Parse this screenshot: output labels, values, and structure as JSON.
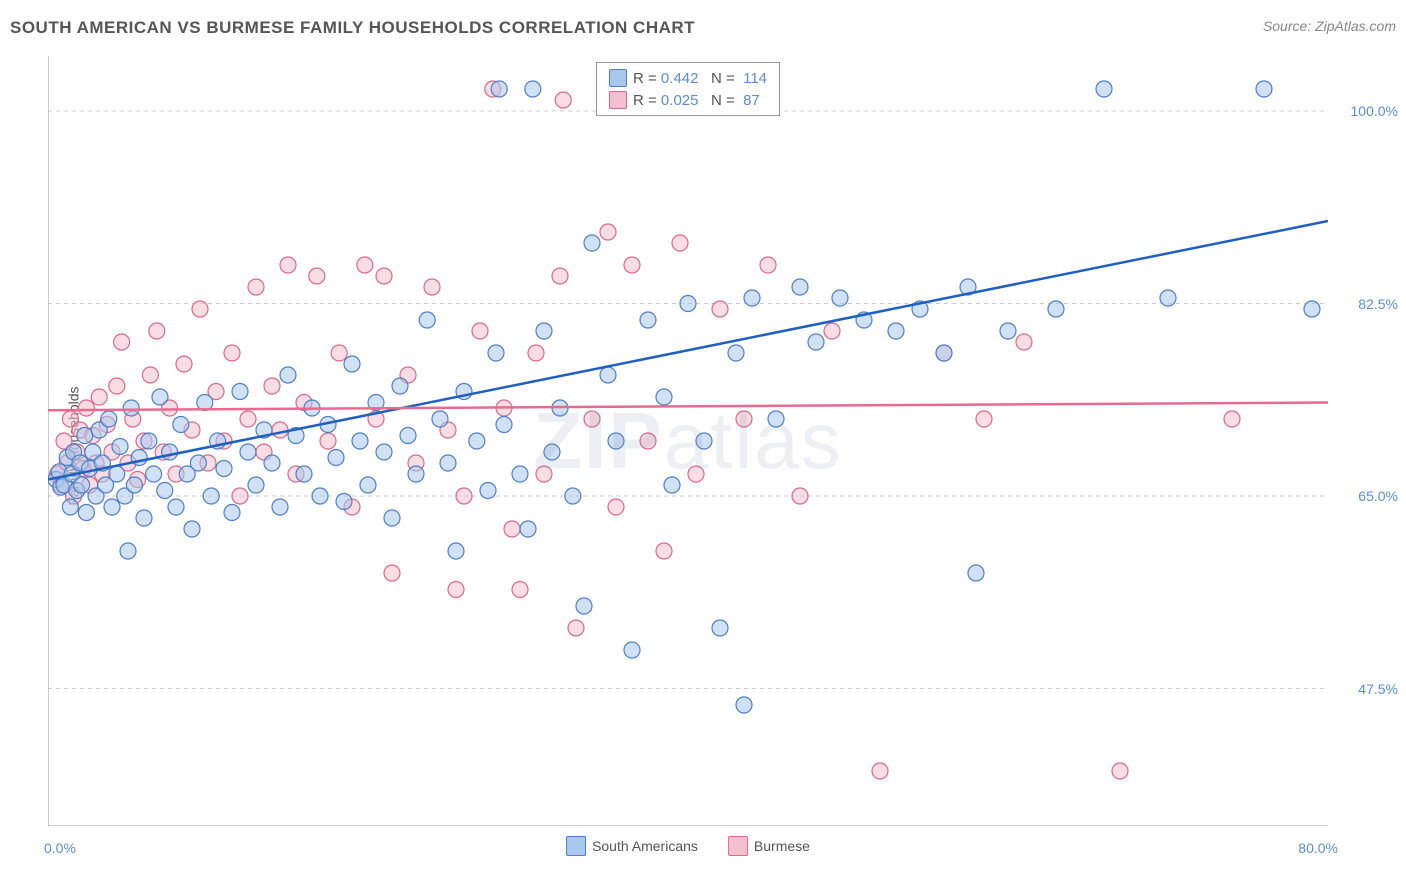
{
  "header": {
    "title": "SOUTH AMERICAN VS BURMESE FAMILY HOUSEHOLDS CORRELATION CHART",
    "source": "Source: ZipAtlas.com"
  },
  "watermark": {
    "bold": "ZIP",
    "light": "atlas"
  },
  "chart": {
    "type": "scatter",
    "ylabel": "Family Households",
    "background_color": "#ffffff",
    "grid_color": "#cccccc",
    "axis_color": "#999999",
    "tick_color": "#999999",
    "xlim": [
      0,
      80
    ],
    "ylim": [
      35,
      105
    ],
    "xtick_step": 10,
    "ytick_step": 17.5,
    "ytick_labels": [
      "47.5%",
      "65.0%",
      "82.5%",
      "100.0%"
    ],
    "ytick_values": [
      47.5,
      65.0,
      82.5,
      100.0
    ],
    "xtick_labels_shown": {
      "first": "0.0%",
      "last": "80.0%"
    },
    "marker_radius": 8,
    "marker_opacity": 0.55,
    "marker_stroke_width": 1.2,
    "trend_line_width": 2.5,
    "series": [
      {
        "key": "south_americans",
        "label": "South Americans",
        "fill": "#a9c6ec",
        "stroke": "#4f7fc4",
        "line_color": "#1f5fc0",
        "R": "0.442",
        "N": "114",
        "trend": {
          "x1": 0,
          "y1": 66.5,
          "x2": 80,
          "y2": 90.0
        },
        "points": [
          [
            0.5,
            66.5
          ],
          [
            0.7,
            67.2
          ],
          [
            0.8,
            65.8
          ],
          [
            1.0,
            66.0
          ],
          [
            1.2,
            68.5
          ],
          [
            1.4,
            64.0
          ],
          [
            1.5,
            67.0
          ],
          [
            1.6,
            69.0
          ],
          [
            1.8,
            65.5
          ],
          [
            2.0,
            68.0
          ],
          [
            2.1,
            66.0
          ],
          [
            2.3,
            70.5
          ],
          [
            2.4,
            63.5
          ],
          [
            2.6,
            67.5
          ],
          [
            2.8,
            69.0
          ],
          [
            3.0,
            65.0
          ],
          [
            3.2,
            71.0
          ],
          [
            3.4,
            68.0
          ],
          [
            3.6,
            66.0
          ],
          [
            3.8,
            72.0
          ],
          [
            4.0,
            64.0
          ],
          [
            4.3,
            67.0
          ],
          [
            4.5,
            69.5
          ],
          [
            4.8,
            65.0
          ],
          [
            5.0,
            60.0
          ],
          [
            5.2,
            73.0
          ],
          [
            5.4,
            66.0
          ],
          [
            5.7,
            68.5
          ],
          [
            6.0,
            63.0
          ],
          [
            6.3,
            70.0
          ],
          [
            6.6,
            67.0
          ],
          [
            7.0,
            74.0
          ],
          [
            7.3,
            65.5
          ],
          [
            7.6,
            69.0
          ],
          [
            8.0,
            64.0
          ],
          [
            8.3,
            71.5
          ],
          [
            8.7,
            67.0
          ],
          [
            9.0,
            62.0
          ],
          [
            9.4,
            68.0
          ],
          [
            9.8,
            73.5
          ],
          [
            10.2,
            65.0
          ],
          [
            10.6,
            70.0
          ],
          [
            11.0,
            67.5
          ],
          [
            11.5,
            63.5
          ],
          [
            12.0,
            74.5
          ],
          [
            12.5,
            69.0
          ],
          [
            13.0,
            66.0
          ],
          [
            13.5,
            71.0
          ],
          [
            14.0,
            68.0
          ],
          [
            14.5,
            64.0
          ],
          [
            15.0,
            76.0
          ],
          [
            15.5,
            70.5
          ],
          [
            16.0,
            67.0
          ],
          [
            16.5,
            73.0
          ],
          [
            17.0,
            65.0
          ],
          [
            17.5,
            71.5
          ],
          [
            18.0,
            68.5
          ],
          [
            18.5,
            64.5
          ],
          [
            19.0,
            77.0
          ],
          [
            19.5,
            70.0
          ],
          [
            20.0,
            66.0
          ],
          [
            20.5,
            73.5
          ],
          [
            21.0,
            69.0
          ],
          [
            21.5,
            63.0
          ],
          [
            22.0,
            75.0
          ],
          [
            22.5,
            70.5
          ],
          [
            23.0,
            67.0
          ],
          [
            23.7,
            81.0
          ],
          [
            24.5,
            72.0
          ],
          [
            25.0,
            68.0
          ],
          [
            25.5,
            60.0
          ],
          [
            26.0,
            74.5
          ],
          [
            26.8,
            70.0
          ],
          [
            27.5,
            65.5
          ],
          [
            28.0,
            78.0
          ],
          [
            28.2,
            102.0
          ],
          [
            28.5,
            71.5
          ],
          [
            29.5,
            67.0
          ],
          [
            30.0,
            62.0
          ],
          [
            30.3,
            102.0
          ],
          [
            31.0,
            80.0
          ],
          [
            31.5,
            69.0
          ],
          [
            32.0,
            73.0
          ],
          [
            32.8,
            65.0
          ],
          [
            33.5,
            55.0
          ],
          [
            34.0,
            88.0
          ],
          [
            35.0,
            76.0
          ],
          [
            35.5,
            70.0
          ],
          [
            36.5,
            51.0
          ],
          [
            37.5,
            81.0
          ],
          [
            38.5,
            74.0
          ],
          [
            39.0,
            66.0
          ],
          [
            40.0,
            82.5
          ],
          [
            41.0,
            70.0
          ],
          [
            42.0,
            53.0
          ],
          [
            43.0,
            78.0
          ],
          [
            43.5,
            46.0
          ],
          [
            44.0,
            83.0
          ],
          [
            45.5,
            72.0
          ],
          [
            47.0,
            84.0
          ],
          [
            48.0,
            79.0
          ],
          [
            49.5,
            83.0
          ],
          [
            51.0,
            81.0
          ],
          [
            53.0,
            80.0
          ],
          [
            54.5,
            82.0
          ],
          [
            56.0,
            78.0
          ],
          [
            57.5,
            84.0
          ],
          [
            58.0,
            58.0
          ],
          [
            60.0,
            80.0
          ],
          [
            63.0,
            82.0
          ],
          [
            66.0,
            102.0
          ],
          [
            70.0,
            83.0
          ],
          [
            76.0,
            102.0
          ],
          [
            79.0,
            82.0
          ]
        ]
      },
      {
        "key": "burmese",
        "label": "Burmese",
        "fill": "#f4c0cd",
        "stroke": "#d96a8a",
        "line_color": "#e86b8f",
        "R": "0.025",
        "N": "87",
        "trend": {
          "x1": 0,
          "y1": 72.8,
          "x2": 80,
          "y2": 73.5
        },
        "points": [
          [
            0.6,
            67.0
          ],
          [
            0.8,
            66.0
          ],
          [
            1.0,
            70.0
          ],
          [
            1.2,
            68.0
          ],
          [
            1.4,
            72.0
          ],
          [
            1.6,
            65.0
          ],
          [
            1.8,
            69.0
          ],
          [
            2.0,
            71.0
          ],
          [
            2.2,
            67.5
          ],
          [
            2.4,
            73.0
          ],
          [
            2.6,
            66.0
          ],
          [
            2.8,
            70.5
          ],
          [
            3.0,
            68.0
          ],
          [
            3.2,
            74.0
          ],
          [
            3.4,
            67.0
          ],
          [
            3.7,
            71.5
          ],
          [
            4.0,
            69.0
          ],
          [
            4.3,
            75.0
          ],
          [
            4.6,
            79.0
          ],
          [
            5.0,
            68.0
          ],
          [
            5.3,
            72.0
          ],
          [
            5.6,
            66.5
          ],
          [
            6.0,
            70.0
          ],
          [
            6.4,
            76.0
          ],
          [
            6.8,
            80.0
          ],
          [
            7.2,
            69.0
          ],
          [
            7.6,
            73.0
          ],
          [
            8.0,
            67.0
          ],
          [
            8.5,
            77.0
          ],
          [
            9.0,
            71.0
          ],
          [
            9.5,
            82.0
          ],
          [
            10.0,
            68.0
          ],
          [
            10.5,
            74.5
          ],
          [
            11.0,
            70.0
          ],
          [
            11.5,
            78.0
          ],
          [
            12.0,
            65.0
          ],
          [
            12.5,
            72.0
          ],
          [
            13.0,
            84.0
          ],
          [
            13.5,
            69.0
          ],
          [
            14.0,
            75.0
          ],
          [
            14.5,
            71.0
          ],
          [
            15.0,
            86.0
          ],
          [
            15.5,
            67.0
          ],
          [
            16.0,
            73.5
          ],
          [
            16.8,
            85.0
          ],
          [
            17.5,
            70.0
          ],
          [
            18.2,
            78.0
          ],
          [
            19.0,
            64.0
          ],
          [
            19.8,
            86.0
          ],
          [
            20.5,
            72.0
          ],
          [
            21.0,
            85.0
          ],
          [
            21.5,
            58.0
          ],
          [
            22.5,
            76.0
          ],
          [
            23.0,
            68.0
          ],
          [
            24.0,
            84.0
          ],
          [
            25.0,
            71.0
          ],
          [
            25.5,
            56.5
          ],
          [
            26.0,
            65.0
          ],
          [
            27.0,
            80.0
          ],
          [
            27.8,
            102.0
          ],
          [
            28.5,
            73.0
          ],
          [
            29.0,
            62.0
          ],
          [
            29.5,
            56.5
          ],
          [
            30.5,
            78.0
          ],
          [
            31.0,
            67.0
          ],
          [
            32.0,
            85.0
          ],
          [
            32.2,
            101.0
          ],
          [
            33.0,
            53.0
          ],
          [
            34.0,
            72.0
          ],
          [
            35.0,
            89.0
          ],
          [
            35.5,
            64.0
          ],
          [
            36.5,
            86.0
          ],
          [
            37.5,
            70.0
          ],
          [
            38.5,
            60.0
          ],
          [
            39.5,
            88.0
          ],
          [
            40.5,
            67.0
          ],
          [
            42.0,
            82.0
          ],
          [
            43.5,
            72.0
          ],
          [
            45.0,
            86.0
          ],
          [
            47.0,
            65.0
          ],
          [
            49.0,
            80.0
          ],
          [
            52.0,
            40.0
          ],
          [
            56.0,
            78.0
          ],
          [
            58.5,
            72.0
          ],
          [
            61.0,
            79.0
          ],
          [
            67.0,
            40.0
          ],
          [
            74.0,
            72.0
          ]
        ]
      }
    ]
  },
  "legend_bottom": [
    {
      "swatch_fill": "#a9c6ec",
      "swatch_stroke": "#4f7fc4",
      "label": "South Americans"
    },
    {
      "swatch_fill": "#f4c0cd",
      "swatch_stroke": "#d96a8a",
      "label": "Burmese"
    }
  ]
}
